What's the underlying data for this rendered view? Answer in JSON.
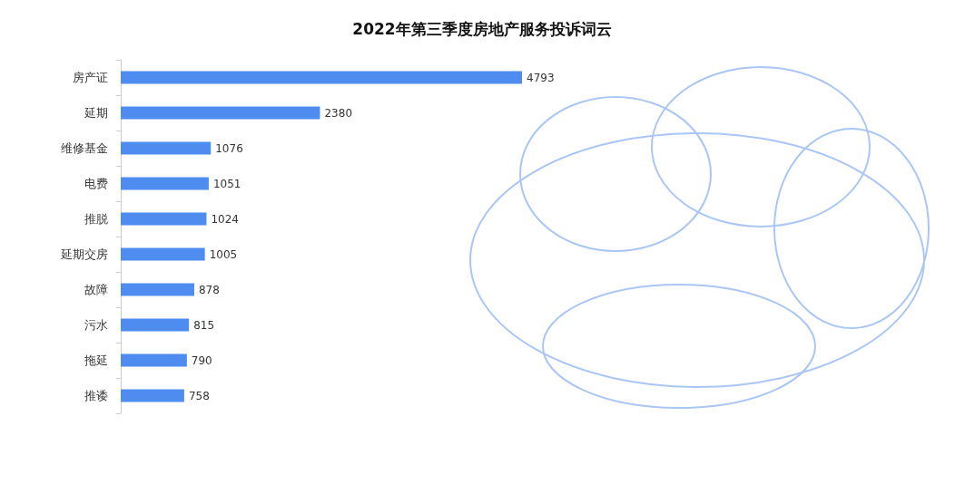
{
  "chart_data": {
    "type": "bar",
    "orientation": "horizontal",
    "title": "2022年第三季度房地产服务投诉词云",
    "categories": [
      "房产证",
      "延期",
      "维修基金",
      "电费",
      "推脱",
      "延期交房",
      "故障",
      "污水",
      "拖延",
      "推诿"
    ],
    "values": [
      4793,
      2380,
      1076,
      1051,
      1024,
      1005,
      878,
      815,
      790,
      758
    ],
    "color": "#4e8cf0",
    "data_labels": true,
    "grid": false
  }
}
